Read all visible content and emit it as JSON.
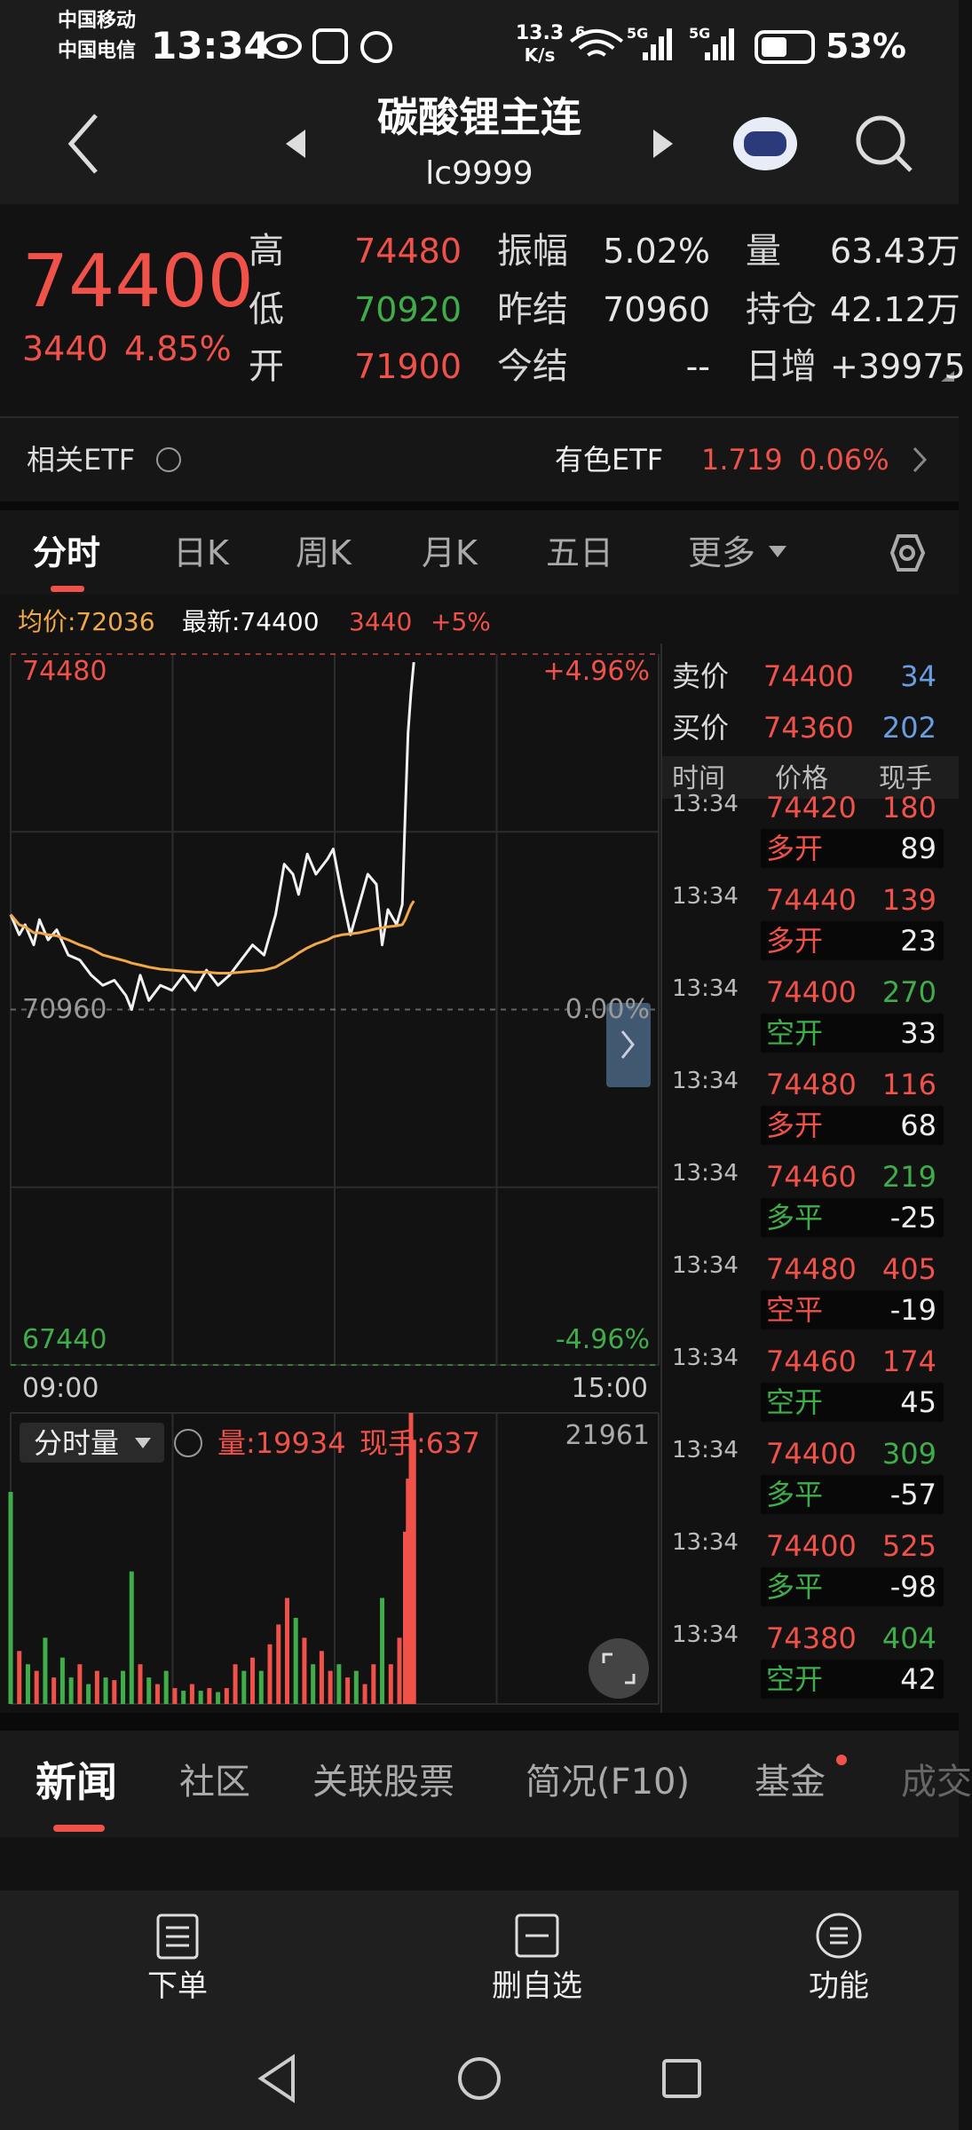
{
  "status_bar": {
    "carriers": [
      "中国移动",
      "中国电信"
    ],
    "time": "13:34",
    "speed": "13.3",
    "speed_unit": "K/s",
    "wifi_label": "6",
    "networks": [
      "5G",
      "5G"
    ],
    "battery": "53%"
  },
  "header": {
    "title": "碳酸锂主连",
    "code": "lc9999"
  },
  "quote": {
    "price": "74400",
    "change": "3440",
    "change_pct": "4.85%",
    "color": "#f0524a",
    "stats": [
      {
        "label": "高",
        "value": "74480",
        "color": "#f0524a"
      },
      {
        "label": "低",
        "value": "70920",
        "color": "#3fae4a"
      },
      {
        "label": "开",
        "value": "71900",
        "color": "#f0524a"
      },
      {
        "label": "振幅",
        "value": "5.02%",
        "color": "#e6e6e6"
      },
      {
        "label": "昨结",
        "value": "70960",
        "color": "#e6e6e6"
      },
      {
        "label": "今结",
        "value": "--",
        "color": "#e6e6e6"
      },
      {
        "label": "量",
        "value": "63.43万",
        "color": "#e6e6e6"
      },
      {
        "label": "持仓",
        "value": "42.12万",
        "color": "#e6e6e6"
      },
      {
        "label": "日增",
        "value": "+39975",
        "color": "#e6e6e6"
      }
    ]
  },
  "etf": {
    "label": "相关ETF",
    "name": "有色ETF",
    "price": "1.719",
    "change_pct": "0.06%",
    "color": "#f0524a"
  },
  "tabs": [
    "分时",
    "日K",
    "周K",
    "月K",
    "五日",
    "更多"
  ],
  "active_tab": 0,
  "info": {
    "avg": "均价:72036",
    "latest": "最新:74400",
    "change": "3440",
    "change_pct": "+5%"
  },
  "chart_data": [
    {
      "type": "line",
      "x": [
        0,
        3,
        5,
        8,
        10,
        13,
        16,
        20,
        24,
        28,
        32,
        36,
        40,
        42,
        45,
        48,
        52,
        56,
        60,
        64,
        68,
        72,
        76,
        80,
        84,
        88,
        92,
        95,
        98,
        100,
        103,
        106,
        110,
        112,
        115,
        118,
        121,
        124,
        127,
        129,
        131,
        134,
        136,
        137,
        138,
        139,
        140
      ],
      "xlim": [
        0,
        225
      ],
      "xticks": [
        {
          "value": 0,
          "label": "09:00"
        },
        {
          "value": 225,
          "label": "15:00"
        }
      ],
      "ylim": [
        67440,
        74480
      ],
      "yticks": [
        74480,
        70960,
        67440
      ],
      "ytick_colors": [
        "#f0524a",
        "#9a9a9a",
        "#3fae4a"
      ],
      "y2lim": [
        -4.96,
        4.96
      ],
      "y2ticks": [
        {
          "value": 4.96,
          "label": "+4.96%"
        },
        {
          "value": 0,
          "label": "0.00%"
        },
        {
          "value": -4.96,
          "label": "-4.96%"
        }
      ],
      "series": [
        {
          "color": "#f2f2f2",
          "values": [
            71900,
            71700,
            71800,
            71600,
            71850,
            71650,
            71750,
            71500,
            71450,
            71300,
            71200,
            71250,
            71100,
            70960,
            71300,
            71050,
            71200,
            71150,
            71300,
            71150,
            71350,
            71200,
            71300,
            71450,
            71600,
            71500,
            71900,
            72400,
            72300,
            72100,
            72500,
            72300,
            72450,
            72550,
            72100,
            71700,
            72000,
            72300,
            72200,
            71600,
            71950,
            71800,
            72000,
            72900,
            73700,
            74100,
            74400
          ]
        },
        {
          "color": "#f0a848",
          "values": [
            71900,
            71800,
            71780,
            71720,
            71720,
            71700,
            71690,
            71650,
            71600,
            71560,
            71500,
            71470,
            71440,
            71420,
            71400,
            71380,
            71360,
            71350,
            71340,
            71330,
            71330,
            71320,
            71320,
            71330,
            71340,
            71350,
            71380,
            71430,
            71480,
            71520,
            71570,
            71610,
            71650,
            71680,
            71700,
            71710,
            71720,
            71740,
            71760,
            71770,
            71780,
            71790,
            71800,
            71850,
            71920,
            71990,
            72036
          ]
        }
      ]
    },
    {
      "type": "bar",
      "title": "分时量",
      "annotations": [
        "量:19934",
        "现手:637"
      ],
      "x": [
        0,
        3,
        6,
        9,
        12,
        15,
        18,
        21,
        24,
        27,
        30,
        33,
        36,
        39,
        42,
        45,
        48,
        51,
        54,
        57,
        60,
        63,
        66,
        69,
        72,
        75,
        78,
        81,
        84,
        87,
        90,
        93,
        96,
        99,
        102,
        105,
        108,
        111,
        114,
        117,
        120,
        123,
        126,
        129,
        132,
        135,
        137,
        138,
        139,
        140
      ],
      "xlim": [
        0,
        225
      ],
      "values": [
        16000,
        4000,
        3000,
        2500,
        5000,
        2000,
        3500,
        2000,
        3000,
        1500,
        2500,
        2000,
        1800,
        2500,
        10000,
        3000,
        2000,
        1500,
        2500,
        1200,
        1000,
        1500,
        1000,
        1200,
        900,
        1200,
        3000,
        2500,
        3500,
        2500,
        4500,
        6000,
        8000,
        6500,
        5000,
        3000,
        4000,
        2500,
        3000,
        2000,
        2500,
        1500,
        3000,
        8000,
        3000,
        5000,
        13000,
        17000,
        21961,
        19934
      ],
      "colors": [
        "#3fae4a",
        "#f0524a",
        "#3fae4a",
        "#f0524a",
        "#3fae4a",
        "#f0524a",
        "#3fae4a",
        "#3fae4a",
        "#f0524a",
        "#3fae4a",
        "#f0524a",
        "#3fae4a",
        "#f0524a",
        "#3fae4a",
        "#3fae4a",
        "#f0524a",
        "#3fae4a",
        "#f0524a",
        "#3fae4a",
        "#f0524a",
        "#3fae4a",
        "#f0524a",
        "#3fae4a",
        "#f0524a",
        "#3fae4a",
        "#f0524a",
        "#f0524a",
        "#3fae4a",
        "#f0524a",
        "#3fae4a",
        "#f0524a",
        "#f0524a",
        "#f0524a",
        "#3fae4a",
        "#f0524a",
        "#3fae4a",
        "#f0524a",
        "#f0524a",
        "#3fae4a",
        "#f0524a",
        "#3fae4a",
        "#f0524a",
        "#f0524a",
        "#3fae4a",
        "#f0524a",
        "#f0524a",
        "#f0524a",
        "#f0524a",
        "#f0524a",
        "#f0524a"
      ],
      "ylim": [
        0,
        21961
      ],
      "yticks": [
        21961
      ]
    }
  ],
  "order_book": {
    "ask_label": "卖价",
    "ask": "74400",
    "ask_qty": "34",
    "bid_label": "买价",
    "bid": "74360",
    "bid_qty": "202",
    "columns": [
      "时间",
      "价格",
      "现手"
    ]
  },
  "trades": [
    {
      "time": "13:34",
      "price": "74420",
      "qty": "180",
      "qty_color": "#f0524a",
      "type": "多开",
      "type_color": "#f0524a",
      "diff": "89"
    },
    {
      "time": "13:34",
      "price": "74440",
      "qty": "139",
      "qty_color": "#f0524a",
      "type": "多开",
      "type_color": "#f0524a",
      "diff": "23"
    },
    {
      "time": "13:34",
      "price": "74400",
      "qty": "270",
      "qty_color": "#3fae4a",
      "type": "空开",
      "type_color": "#3fae4a",
      "diff": "33"
    },
    {
      "time": "13:34",
      "price": "74480",
      "qty": "116",
      "qty_color": "#f0524a",
      "type": "多开",
      "type_color": "#f0524a",
      "diff": "68"
    },
    {
      "time": "13:34",
      "price": "74460",
      "qty": "219",
      "qty_color": "#3fae4a",
      "type": "多平",
      "type_color": "#3fae4a",
      "diff": "-25"
    },
    {
      "time": "13:34",
      "price": "74480",
      "qty": "405",
      "qty_color": "#f0524a",
      "type": "空平",
      "type_color": "#f0524a",
      "diff": "-19"
    },
    {
      "time": "13:34",
      "price": "74460",
      "qty": "174",
      "qty_color": "#f0524a",
      "type": "空开",
      "type_color": "#3fae4a",
      "diff": "45"
    },
    {
      "time": "13:34",
      "price": "74400",
      "qty": "309",
      "qty_color": "#3fae4a",
      "type": "多平",
      "type_color": "#3fae4a",
      "diff": "-57"
    },
    {
      "time": "13:34",
      "price": "74400",
      "qty": "525",
      "qty_color": "#f0524a",
      "type": "多平",
      "type_color": "#3fae4a",
      "diff": "-98"
    },
    {
      "time": "13:34",
      "price": "74380",
      "qty": "404",
      "qty_color": "#3fae4a",
      "type": "空开",
      "type_color": "#3fae4a",
      "diff": "42"
    }
  ],
  "bottom_tabs": [
    "新闻",
    "社区",
    "关联股票",
    "简况(F10)",
    "基金",
    "成交"
  ],
  "active_bottom_tab": 0,
  "toolbar": [
    "下单",
    "删自选",
    "功能"
  ]
}
